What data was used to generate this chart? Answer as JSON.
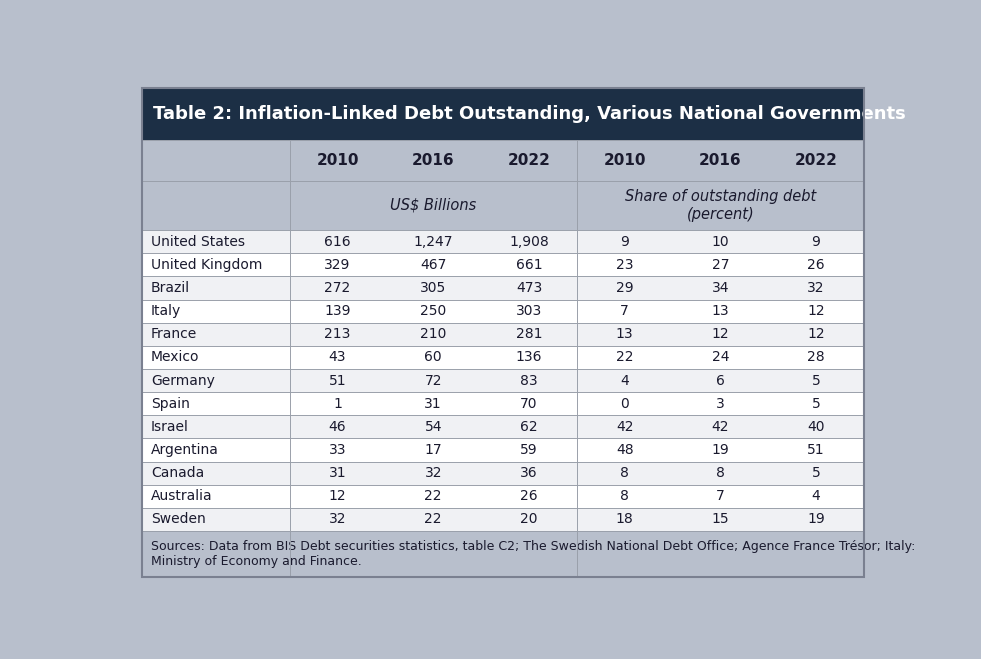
{
  "title": "Table 2: Inflation-Linked Debt Outstanding, Various National Governments",
  "col_headers_years": [
    "2010",
    "2016",
    "2022",
    "2010",
    "2016",
    "2022"
  ],
  "subheader_left": "US$ Billions",
  "subheader_right": "Share of outstanding debt\n(percent)",
  "countries": [
    "United States",
    "United Kingdom",
    "Brazil",
    "Italy",
    "France",
    "Mexico",
    "Germany",
    "Spain",
    "Israel",
    "Argentina",
    "Canada",
    "Australia",
    "Sweden"
  ],
  "usd_billions": [
    [
      "616",
      "1,247",
      "1,908"
    ],
    [
      "329",
      "467",
      "661"
    ],
    [
      "272",
      "305",
      "473"
    ],
    [
      "139",
      "250",
      "303"
    ],
    [
      "213",
      "210",
      "281"
    ],
    [
      "43",
      "60",
      "136"
    ],
    [
      "51",
      "72",
      "83"
    ],
    [
      "1",
      "31",
      "70"
    ],
    [
      "46",
      "54",
      "62"
    ],
    [
      "33",
      "17",
      "59"
    ],
    [
      "31",
      "32",
      "36"
    ],
    [
      "12",
      "22",
      "26"
    ],
    [
      "32",
      "22",
      "20"
    ]
  ],
  "share_percent": [
    [
      "9",
      "10",
      "9"
    ],
    [
      "23",
      "27",
      "26"
    ],
    [
      "29",
      "34",
      "32"
    ],
    [
      "7",
      "13",
      "12"
    ],
    [
      "13",
      "12",
      "12"
    ],
    [
      "22",
      "24",
      "28"
    ],
    [
      "4",
      "6",
      "5"
    ],
    [
      "0",
      "3",
      "5"
    ],
    [
      "42",
      "42",
      "40"
    ],
    [
      "48",
      "19",
      "51"
    ],
    [
      "8",
      "8",
      "5"
    ],
    [
      "8",
      "7",
      "4"
    ],
    [
      "18",
      "15",
      "19"
    ]
  ],
  "footer_line1": "Sources: Data from BIS Debt securities statistics, table C2; The Swedish National Debt Office; Agence France Trésor; Italy:",
  "footer_line2": "Ministry of Economy and Finance.",
  "title_bg": "#1c2f45",
  "title_fg": "#ffffff",
  "header_bg": "#b8bfcc",
  "subheader_bg": "#b8bfcc",
  "row_odd_bg": "#f0f1f4",
  "row_even_bg": "#ffffff",
  "footer_bg": "#b8bfcc",
  "grid_color": "#9aa0aa",
  "text_color": "#1a1a2e",
  "outer_bg": "#b8bfcc",
  "outer_border": "#7a8090"
}
